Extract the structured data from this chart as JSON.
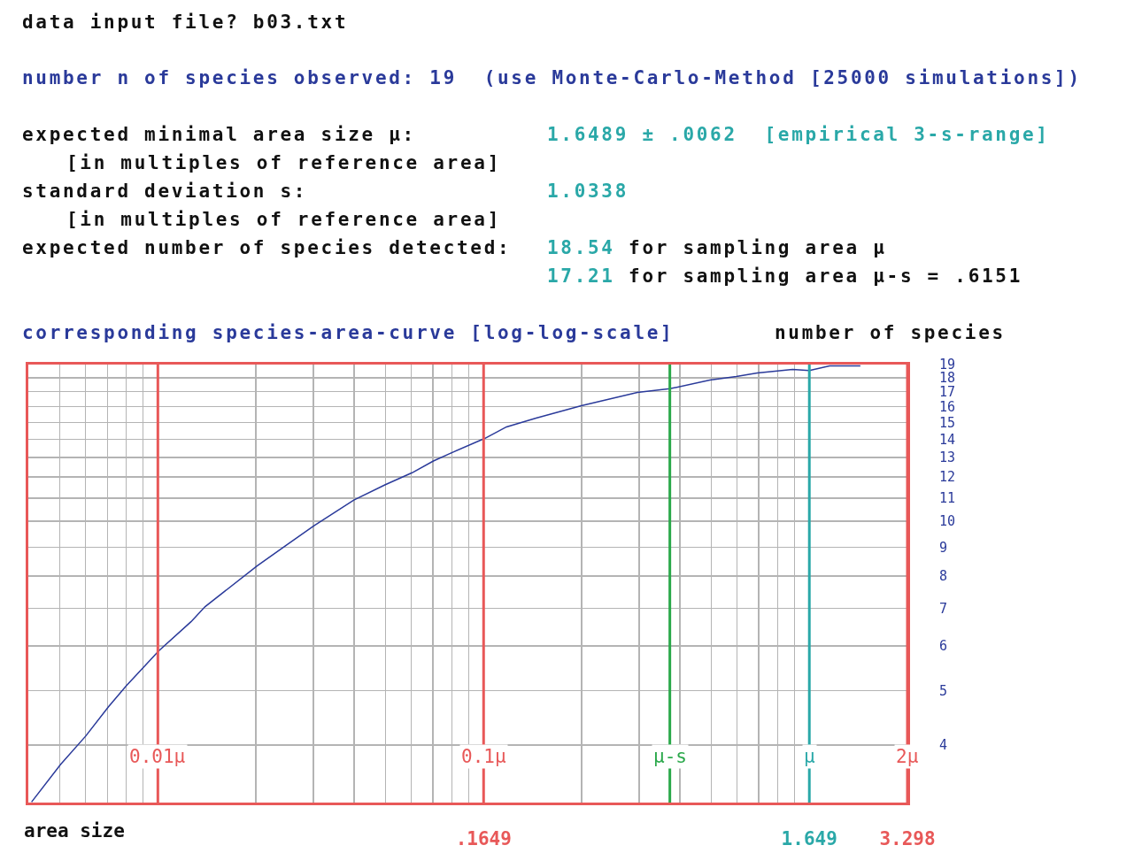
{
  "chart_data": {
    "type": "line",
    "title": "data input file? b03.txt",
    "subtitle": "corresponding species-area-curve [log-log-scale]",
    "xlabel": "area size",
    "ylabel": "number of species",
    "annotations": [
      "number n of species observed: 19  (use Monte-Carlo-Method [25000 simulations])",
      "expected minimal area size μ:",
      "1.6489 ± .0062  [empirical 3-s-range]",
      "[in multiples of reference area]",
      "standard deviation s:",
      "1.0338",
      "[in multiples of reference area]",
      "expected number of species detected:",
      "18.54 for sampling area μ",
      "17.21 for sampling area μ-s = .6151"
    ],
    "series": [
      {
        "color": "#2a3a9a",
        "x": [
          0.006753,
          0.008287,
          0.009899,
          0.01163,
          0.01321,
          0.0166,
          0.02084,
          0.02303,
          0.03323,
          0.04107,
          0.04961,
          0.0659,
          0.08233,
          0.09943,
          0.1156,
          0.1326,
          0.1666,
          0.1939,
          0.239,
          0.3291,
          0.489,
          0.6151,
          0.8163,
          0.9837,
          1.142,
          1.465,
          1.649,
          1.903,
          2.365
        ],
        "values": [
          3.169,
          3.696,
          4.151,
          4.679,
          5.104,
          5.886,
          6.629,
          7.053,
          8.328,
          9.085,
          9.817,
          10.91,
          11.62,
          12.2,
          12.8,
          13.27,
          14.05,
          14.72,
          15.26,
          16.05,
          16.95,
          17.21,
          17.83,
          18.09,
          18.35,
          18.62,
          18.54,
          18.9,
          18.9
        ]
      }
    ],
    "log": "xy",
    "grid": true,
    "marker": "none",
    "line_style": "solid",
    "xlim": [
      0.0066,
      3.298
    ],
    "ylim": [
      3.162,
      19
    ],
    "xticks": [
      {
        "value": 0.008245,
        "label": null
      },
      {
        "value": 0.009893,
        "label": null
      },
      {
        "value": 0.01154,
        "label": null
      },
      {
        "value": 0.01319,
        "label": null
      },
      {
        "value": 0.01484,
        "label": null
      },
      {
        "value": 0.03298,
        "label": null
      },
      {
        "value": 0.04947,
        "label": null
      },
      {
        "value": 0.06596,
        "label": null
      },
      {
        "value": 0.08245,
        "label": null
      },
      {
        "value": 0.09893,
        "label": null
      },
      {
        "value": 0.1154,
        "label": null
      },
      {
        "value": 0.1319,
        "label": null
      },
      {
        "value": 0.1484,
        "label": null
      },
      {
        "value": 0.1649,
        "label": ".1649"
      },
      {
        "value": 0.3298,
        "label": null
      },
      {
        "value": 0.4947,
        "label": null
      },
      {
        "value": 0.6596,
        "label": null
      },
      {
        "value": 0.8245,
        "label": null
      },
      {
        "value": 0.9893,
        "label": null
      },
      {
        "value": 1.154,
        "label": null
      },
      {
        "value": 1.319,
        "label": null
      },
      {
        "value": 1.484,
        "label": null
      },
      {
        "value": 1.649,
        "label": "1.649"
      },
      {
        "value": 3.298,
        "label": "3.298"
      }
    ],
    "yticks": [
      4,
      5,
      6,
      7,
      8,
      9,
      10,
      11,
      12,
      13,
      14,
      15,
      16,
      17,
      18,
      19
    ],
    "ref_lines": [
      {
        "axis": "x",
        "value": 0.01649,
        "label": "0.01μ",
        "color": "#e85858"
      },
      {
        "axis": "x",
        "value": 0.1649,
        "label": "0.1μ",
        "color": "#e85858"
      },
      {
        "axis": "x",
        "value": 0.6151,
        "label": "μ-s",
        "color": "#2aa84a"
      },
      {
        "axis": "x",
        "value": 1.649,
        "label": "μ",
        "color": "#2aa8a8"
      },
      {
        "axis": "x",
        "value": 3.298,
        "label": "2μ",
        "color": "#e85858"
      }
    ]
  }
}
